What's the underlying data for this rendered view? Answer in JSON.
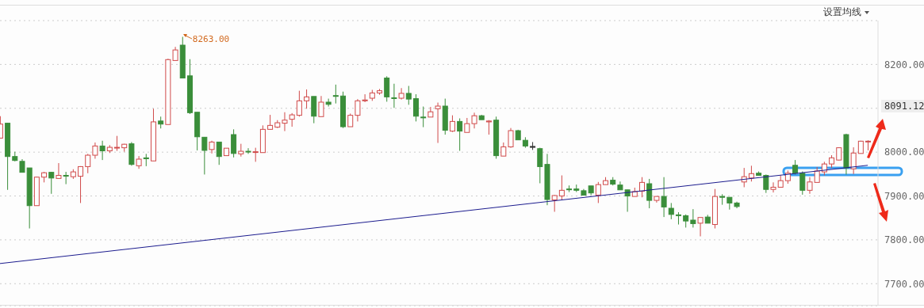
{
  "chart_data": {
    "type": "candlestick",
    "categories": [
      null,
      null,
      null,
      null,
      null,
      null,
      null,
      null,
      null,
      null,
      null,
      null,
      null,
      null,
      null,
      null,
      null,
      null,
      null,
      null,
      null,
      null,
      null,
      null,
      null,
      null,
      null,
      null,
      null,
      null,
      null,
      null,
      null,
      null,
      null,
      null,
      null,
      null,
      null,
      null,
      null,
      null,
      null,
      null,
      null,
      null,
      null,
      null,
      null,
      null,
      null,
      null,
      null,
      null,
      null,
      null,
      null,
      null,
      null,
      null,
      null,
      null,
      null,
      null,
      null,
      null,
      null,
      null,
      null,
      null,
      null,
      null,
      null,
      null,
      null,
      null,
      null,
      null,
      null,
      null,
      null,
      null,
      null,
      null,
      null,
      null,
      null,
      null,
      null,
      null,
      null,
      null,
      null,
      null,
      null,
      null,
      null,
      null,
      null,
      null,
      null,
      null,
      null,
      null,
      null,
      null,
      null,
      null,
      null,
      null,
      null,
      null,
      null,
      null,
      null,
      null,
      null,
      null,
      null,
      null
    ],
    "ohlc": [
      [
        8032,
        8082,
        8032,
        8064
      ],
      [
        8066,
        8067,
        7914,
        7990
      ],
      [
        7990,
        8001,
        7979,
        7981
      ],
      [
        7979,
        7984,
        7954,
        7954
      ],
      [
        7964,
        7964,
        7826,
        7878
      ],
      [
        7878,
        7944,
        7878,
        7943
      ],
      [
        7943,
        7955,
        7931,
        7953
      ],
      [
        7954,
        7955,
        7905,
        7941
      ],
      [
        7940,
        7975,
        7940,
        7947
      ],
      [
        7947,
        7955,
        7927,
        7946
      ],
      [
        7944,
        7961,
        7939,
        7955
      ],
      [
        7945,
        7968,
        7884,
        7967
      ],
      [
        7967,
        7996,
        7952,
        7993
      ],
      [
        7993,
        8022,
        7985,
        8014
      ],
      [
        8014,
        8026,
        7982,
        8003
      ],
      [
        8003,
        8016,
        7998,
        8011
      ],
      [
        8010,
        8037,
        8003,
        8011
      ],
      [
        8010,
        8019,
        8001,
        8018
      ],
      [
        8019,
        8023,
        7969,
        7972
      ],
      [
        7969,
        7991,
        7962,
        7984
      ],
      [
        7987,
        7996,
        7968,
        7985
      ],
      [
        7980,
        8099,
        7980,
        8069
      ],
      [
        8071,
        8081,
        8054,
        8064
      ],
      [
        8063,
        8213,
        8063,
        8211
      ],
      [
        8209,
        8240,
        8209,
        8233
      ],
      [
        8244,
        8263,
        8169,
        8169
      ],
      [
        8174,
        8212,
        8087,
        8090
      ],
      [
        8091,
        8091,
        8004,
        8035
      ],
      [
        8034,
        8034,
        7949,
        8004
      ],
      [
        8006,
        8026,
        7997,
        8023
      ],
      [
        8023,
        8023,
        7971,
        7990
      ],
      [
        7992,
        8009,
        7992,
        8009
      ],
      [
        8040,
        8052,
        7988,
        7997
      ],
      [
        7996,
        8019,
        7990,
        8002
      ],
      [
        8002,
        8009,
        7996,
        8001
      ],
      [
        8000,
        8010,
        7978,
        8001
      ],
      [
        7999,
        8061,
        7999,
        8052
      ],
      [
        8052,
        8085,
        8051,
        8061
      ],
      [
        8057,
        8073,
        8055,
        8067
      ],
      [
        8066,
        8091,
        8048,
        8073
      ],
      [
        8075,
        8089,
        8058,
        8085
      ],
      [
        8084,
        8140,
        8081,
        8117
      ],
      [
        8117,
        8143,
        8099,
        8126
      ],
      [
        8127,
        8127,
        8066,
        8082
      ],
      [
        8081,
        8128,
        8081,
        8114
      ],
      [
        8114,
        8122,
        8104,
        8109
      ],
      [
        8129,
        8154,
        8111,
        8128
      ],
      [
        8128,
        8138,
        8055,
        8058
      ],
      [
        8058,
        8088,
        8058,
        8084
      ],
      [
        8084,
        8121,
        8070,
        8117
      ],
      [
        8117,
        8132,
        8114,
        8119
      ],
      [
        8123,
        8142,
        8117,
        8135
      ],
      [
        8135,
        8144,
        8131,
        8140
      ],
      [
        8169,
        8173,
        8115,
        8126
      ],
      [
        8124,
        8156,
        8101,
        8123
      ],
      [
        8123,
        8146,
        8120,
        8134
      ],
      [
        8134,
        8151,
        8108,
        8121
      ],
      [
        8122,
        8132,
        8070,
        8082
      ],
      [
        8080,
        8104,
        8057,
        8079
      ],
      [
        8080,
        8103,
        8080,
        8092
      ],
      [
        8099,
        8113,
        8021,
        8105
      ],
      [
        8105,
        8122,
        8040,
        8050
      ],
      [
        8048,
        8084,
        8046,
        8070
      ],
      [
        8070,
        8077,
        8003,
        8048
      ],
      [
        8045,
        8078,
        8045,
        8065
      ],
      [
        8065,
        8090,
        8054,
        8083
      ],
      [
        8083,
        8085,
        8074,
        8074
      ],
      [
        8069,
        8073,
        8040,
        8071
      ],
      [
        8073,
        8081,
        7985,
        7992
      ],
      [
        7991,
        8022,
        7991,
        8012
      ],
      [
        8012,
        8055,
        8010,
        8049
      ],
      [
        8049,
        8051,
        8028,
        8028
      ],
      [
        8027,
        8034,
        8010,
        8014
      ],
      [
        8013,
        8023,
        8005,
        8011
      ],
      [
        8008,
        8010,
        7929,
        7967
      ],
      [
        7972,
        7996,
        7879,
        7892
      ],
      [
        7891,
        7902,
        7864,
        7901
      ],
      [
        7900,
        7947,
        7891,
        7913
      ],
      [
        7916,
        7924,
        7909,
        7915
      ],
      [
        7916,
        7926,
        7909,
        7913
      ],
      [
        7912,
        7916,
        7902,
        7902
      ],
      [
        7923,
        7923,
        7902,
        7907
      ],
      [
        7902,
        7932,
        7884,
        7926
      ],
      [
        7926,
        7943,
        7926,
        7935
      ],
      [
        7936,
        7943,
        7924,
        7927
      ],
      [
        7925,
        7933,
        7914,
        7914
      ],
      [
        7914,
        7914,
        7864,
        7900
      ],
      [
        7899,
        7919,
        7899,
        7910
      ],
      [
        7911,
        7943,
        7897,
        7931
      ],
      [
        7928,
        7939,
        7872,
        7890
      ],
      [
        7890,
        7899,
        7885,
        7899
      ],
      [
        7899,
        7943,
        7852,
        7875
      ],
      [
        7872,
        7884,
        7847,
        7858
      ],
      [
        7857,
        7863,
        7835,
        7856
      ],
      [
        7855,
        7858,
        7828,
        7843
      ],
      [
        7845,
        7870,
        7828,
        7837
      ],
      [
        7838,
        7851,
        7808,
        7851
      ],
      [
        7852,
        7857,
        7838,
        7838
      ],
      [
        7835,
        7916,
        7826,
        7899
      ],
      [
        7899,
        7904,
        7880,
        7897
      ],
      [
        7897,
        7897,
        7869,
        7884
      ],
      [
        7884,
        7887,
        7872,
        7876
      ],
      [
        7932,
        7964,
        7920,
        7944
      ],
      [
        7941,
        7969,
        7933,
        7951
      ],
      [
        7952,
        7956,
        7946,
        7947
      ],
      [
        7947,
        7949,
        7907,
        7915
      ],
      [
        7915,
        7931,
        7908,
        7920
      ],
      [
        7920,
        7947,
        7920,
        7935
      ],
      [
        7935,
        7958,
        7928,
        7952
      ],
      [
        7970,
        7982,
        7949,
        7952
      ],
      [
        7952,
        7956,
        7903,
        7913
      ],
      [
        7913,
        7943,
        7905,
        7932
      ],
      [
        7931,
        7966,
        7931,
        7957
      ],
      [
        7955,
        7978,
        7947,
        7973
      ],
      [
        7973,
        7993,
        7964,
        7987
      ],
      [
        7982,
        8011,
        7981,
        8010
      ],
      [
        8040,
        8042,
        7949,
        7964
      ],
      [
        7962,
        8011,
        7950,
        7998
      ],
      [
        7997,
        8026,
        7997,
        8025
      ],
      [
        8024,
        8027,
        8004,
        8025
      ]
    ],
    "colors": [
      "#d04a4a",
      "#3a8e3a",
      "#3a8e3a",
      "#3a8e3a",
      "#3a8e3a",
      "#d04a4a",
      "#d04a4a",
      "#3a8e3a",
      "#d04a4a",
      "#3a8e3a",
      "#d04a4a",
      "#d04a4a",
      "#d04a4a",
      "#d04a4a",
      "#3a8e3a",
      "#d04a4a",
      "#d04a4a",
      "#d04a4a",
      "#3a8e3a",
      "#d04a4a",
      "#3a8e3a",
      "#d04a4a",
      "#3a8e3a",
      "#d04a4a",
      "#d04a4a",
      "#3a8e3a",
      "#3a8e3a",
      "#3a8e3a",
      "#3a8e3a",
      "#d04a4a",
      "#3a8e3a",
      "#d04a4a",
      "#3a8e3a",
      "#d04a4a",
      "#3a8e3a",
      "#d04a4a",
      "#d04a4a",
      "#d04a4a",
      "#d04a4a",
      "#d04a4a",
      "#d04a4a",
      "#d04a4a",
      "#d04a4a",
      "#3a8e3a",
      "#d04a4a",
      "#3a8e3a",
      "#3a8e3a",
      "#3a8e3a",
      "#d04a4a",
      "#d04a4a",
      "#d04a4a",
      "#d04a4a",
      "#d04a4a",
      "#3a8e3a",
      "#3a8e3a",
      "#d04a4a",
      "#3a8e3a",
      "#3a8e3a",
      "#3a8e3a",
      "#d04a4a",
      "#d04a4a",
      "#3a8e3a",
      "#d04a4a",
      "#3a8e3a",
      "#d04a4a",
      "#d04a4a",
      "#3a8e3a",
      "#d04a4a",
      "#3a8e3a",
      "#d04a4a",
      "#d04a4a",
      "#3a8e3a",
      "#3a8e3a",
      "#333333",
      "#3a8e3a",
      "#3a8e3a",
      "#d04a4a",
      "#d04a4a",
      "#3a8e3a",
      "#3a8e3a",
      "#3a8e3a",
      "#3a8e3a",
      "#d04a4a",
      "#d04a4a",
      "#3a8e3a",
      "#3a8e3a",
      "#3a8e3a",
      "#d04a4a",
      "#d04a4a",
      "#3a8e3a",
      "#d04a4a",
      "#3a8e3a",
      "#3a8e3a",
      "#3a8e3a",
      "#3a8e3a",
      "#3a8e3a",
      "#d04a4a",
      "#3a8e3a",
      "#d04a4a",
      "#3a8e3a",
      "#3a8e3a",
      "#3a8e3a",
      "#d04a4a",
      "#d04a4a",
      "#3a8e3a",
      "#3a8e3a",
      "#d04a4a",
      "#d04a4a",
      "#d04a4a",
      "#3a8e3a",
      "#3a8e3a",
      "#d04a4a",
      "#d04a4a",
      "#d04a4a",
      "#d04a4a",
      "#d04a4a",
      "#3a8e3a",
      "#d04a4a",
      "#d04a4a",
      "#d04a4a"
    ],
    "series": [
      {
        "type": "line",
        "values": [
          7746,
          null,
          null,
          null,
          null,
          null,
          null,
          null,
          null,
          null,
          null,
          null,
          null,
          null,
          null,
          null,
          null,
          null,
          null,
          null,
          null,
          null,
          null,
          null,
          null,
          null,
          null,
          null,
          null,
          null,
          null,
          null,
          null,
          null,
          null,
          null,
          null,
          null,
          null,
          null,
          null,
          null,
          null,
          null,
          null,
          null,
          null,
          null,
          null,
          null,
          null,
          null,
          null,
          null,
          null,
          null,
          null,
          null,
          null,
          null,
          null,
          null,
          null,
          null,
          null,
          null,
          null,
          null,
          null,
          null,
          null,
          null,
          null,
          null,
          null,
          null,
          null,
          null,
          null,
          null,
          null,
          null,
          null,
          null,
          null,
          null,
          null,
          null,
          null,
          null,
          null,
          null,
          null,
          null,
          null,
          null,
          null,
          null,
          null,
          null,
          null,
          null,
          null,
          null,
          null,
          null,
          null,
          null,
          null,
          null,
          null,
          null,
          null,
          null,
          null,
          null,
          null,
          null,
          null,
          7970
        ],
        "color": "#1c1c8e"
      }
    ],
    "ylim": [
      7650,
      8300
    ],
    "yticks": [
      {
        "value": 7700,
        "label": "7700.00"
      },
      {
        "value": 7800,
        "label": "7800.00"
      },
      {
        "value": 7900,
        "label": "7900.00"
      },
      {
        "value": 8000,
        "label": "8000.00"
      },
      {
        "value": 8100,
        "label": null
      },
      {
        "value": 8200,
        "label": "8200.00"
      }
    ],
    "grid": "y",
    "annotations": [
      "设置均线",
      "8263.00",
      "8091.12"
    ]
  }
}
